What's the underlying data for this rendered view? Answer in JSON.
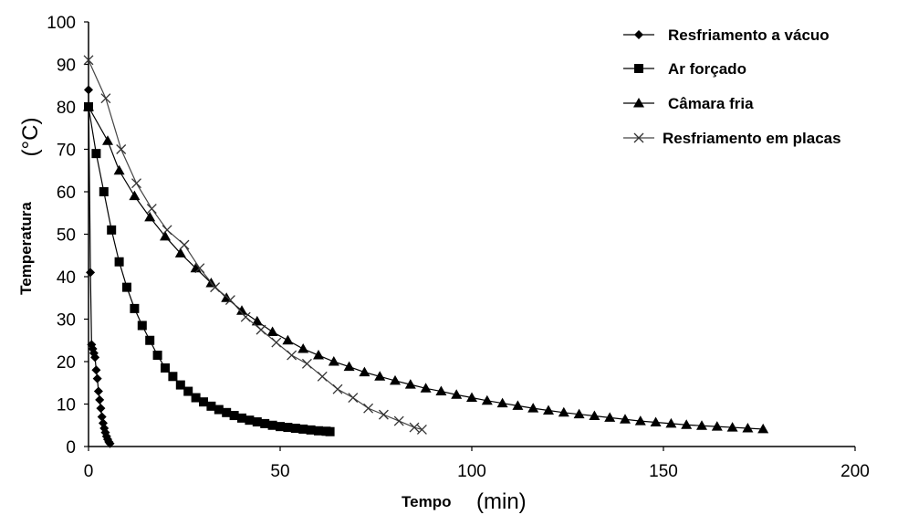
{
  "chart_data": {
    "type": "line",
    "xlabel": "Tempo",
    "xlabel_unit": "(min)",
    "ylabel": "Temperatura",
    "ylabel_unit": "(°C)",
    "xlim": [
      0,
      200
    ],
    "ylim": [
      0,
      100
    ],
    "x_ticks": [
      "0",
      "50",
      "100",
      "150",
      "200"
    ],
    "y_ticks": [
      "0",
      "10",
      "20",
      "30",
      "40",
      "50",
      "60",
      "70",
      "80",
      "90",
      "100"
    ],
    "grid": false,
    "legend_position": "top-right",
    "series": [
      {
        "name": "Resfriamento a vácuo",
        "marker": "diamond",
        "x": [
          0,
          0.5,
          0.8,
          1.1,
          1.4,
          1.7,
          2.0,
          2.3,
          2.6,
          2.9,
          3.2,
          3.5,
          3.8,
          4.1,
          4.4,
          4.7,
          5.0,
          5.3,
          5.6
        ],
        "y": [
          84,
          41,
          24,
          23,
          22,
          21,
          18,
          16,
          13,
          11,
          9,
          7,
          5.5,
          4.3,
          3.3,
          2.4,
          1.7,
          1.1,
          0.7
        ]
      },
      {
        "name": "Ar forçado",
        "marker": "square",
        "x": [
          0,
          2,
          4,
          6,
          8,
          10,
          12,
          14,
          16,
          18,
          20,
          22,
          24,
          26,
          28,
          30,
          32,
          34,
          36,
          38,
          40,
          42,
          44,
          46,
          48,
          50,
          52,
          54,
          56,
          58,
          60,
          62,
          63
        ],
        "y": [
          80,
          69,
          60,
          51,
          43.5,
          37.5,
          32.5,
          28.5,
          25,
          21.5,
          18.5,
          16.5,
          14.5,
          13,
          11.5,
          10.5,
          9.5,
          8.7,
          8,
          7.3,
          6.7,
          6.2,
          5.8,
          5.4,
          5,
          4.7,
          4.5,
          4.3,
          4.1,
          3.9,
          3.7,
          3.6,
          3.5
        ]
      },
      {
        "name": "Câmara fria",
        "marker": "triangle",
        "x": [
          0,
          5,
          8,
          12,
          16,
          20,
          24,
          28,
          32,
          36,
          40,
          44,
          48,
          52,
          56,
          60,
          64,
          68,
          72,
          76,
          80,
          84,
          88,
          92,
          96,
          100,
          104,
          108,
          112,
          116,
          120,
          124,
          128,
          132,
          136,
          140,
          144,
          148,
          152,
          156,
          160,
          164,
          168,
          172,
          176
        ],
        "y": [
          80,
          72,
          65,
          59,
          54,
          49.5,
          45.5,
          42,
          38.5,
          35,
          32,
          29.5,
          27,
          25,
          23,
          21.5,
          20,
          18.8,
          17.5,
          16.5,
          15.5,
          14.6,
          13.7,
          13,
          12.2,
          11.5,
          10.8,
          10.2,
          9.6,
          9,
          8.5,
          8,
          7.6,
          7.2,
          6.8,
          6.4,
          6,
          5.7,
          5.4,
          5.1,
          4.9,
          4.7,
          4.5,
          4.3,
          4.1
        ]
      },
      {
        "name": "Resfriamento em placas",
        "marker": "cross",
        "x": [
          0,
          4.5,
          8.5,
          12.5,
          16.5,
          20.5,
          25,
          29,
          33,
          37,
          41,
          45,
          49,
          53,
          57,
          61,
          65,
          69,
          73,
          77,
          81,
          85,
          87
        ],
        "y": [
          91,
          82,
          70,
          62,
          56,
          51,
          47.5,
          42,
          37.5,
          34.5,
          30.5,
          27.5,
          24.5,
          21.5,
          19.5,
          16.5,
          13.5,
          11.5,
          9,
          7.5,
          6,
          4.5,
          4
        ]
      }
    ]
  }
}
